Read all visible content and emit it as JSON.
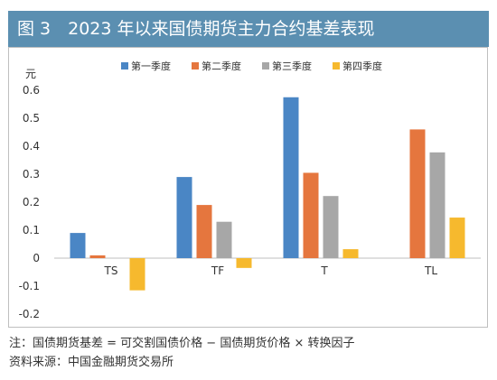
{
  "figure": {
    "title": "图 3　2023 年以来国债期货主力合约基差表现",
    "note": "注：国债期货基差 = 可交割国债价格 − 国债期货价格 × 转换因子",
    "source": "资料来源：中国金融期货交易所"
  },
  "chart_data": {
    "type": "bar",
    "ylabel": "元",
    "categories": [
      "TS",
      "TF",
      "T",
      "TL"
    ],
    "ylim": [
      -0.2,
      0.6
    ],
    "yticks": [
      "0.6",
      "0.5",
      "0.4",
      "0.3",
      "0.2",
      "0.1",
      "0",
      "-0.1",
      "-0.2"
    ],
    "ytick_values": [
      0.6,
      0.5,
      0.4,
      0.3,
      0.2,
      0.1,
      0,
      -0.1,
      -0.2
    ],
    "grid": false,
    "legend_position": "top",
    "series": [
      {
        "name": "第一季度",
        "color": "#4a86c5",
        "values": [
          0.09,
          0.29,
          0.575,
          null
        ]
      },
      {
        "name": "第二季度",
        "color": "#e5763e",
        "values": [
          0.01,
          0.19,
          0.305,
          0.46
        ]
      },
      {
        "name": "第三季度",
        "color": "#a7a7a7",
        "values": [
          null,
          0.13,
          0.222,
          0.378
        ]
      },
      {
        "name": "第四季度",
        "color": "#f6b92e",
        "values": [
          -0.115,
          -0.035,
          0.032,
          0.145
        ]
      }
    ]
  }
}
